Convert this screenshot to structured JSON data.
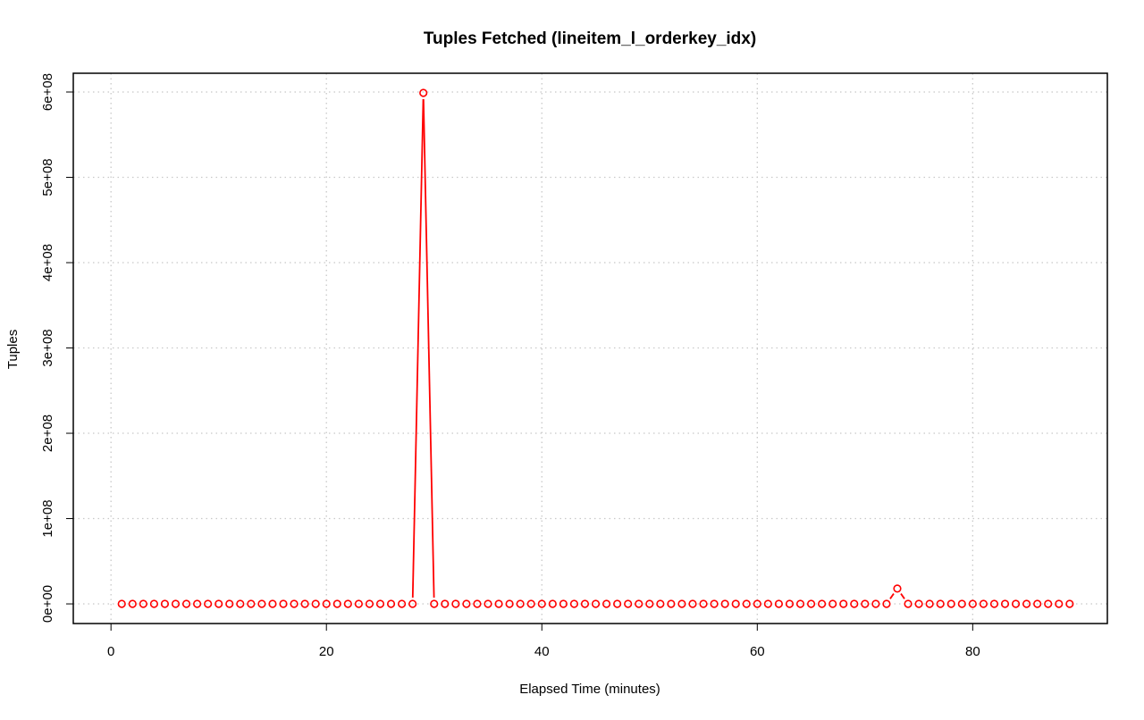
{
  "chart_data": {
    "type": "line",
    "title": "Tuples Fetched (lineitem_l_orderkey_idx)",
    "xlabel": "Elapsed Time (minutes)",
    "ylabel": "Tuples",
    "xlim": [
      -3.5,
      92.5
    ],
    "ylim": [
      -23000000,
      622000000
    ],
    "x_ticks": [
      0,
      20,
      40,
      60,
      80
    ],
    "x_tick_labels": [
      "0",
      "20",
      "40",
      "60",
      "80"
    ],
    "y_ticks": [
      0,
      100000000,
      200000000,
      300000000,
      400000000,
      500000000,
      600000000
    ],
    "y_tick_labels": [
      "0e+00",
      "1e+08",
      "2e+08",
      "3e+08",
      "4e+08",
      "5e+08",
      "6e+08"
    ],
    "grid": true,
    "colors": {
      "series": "#ff0000",
      "grid": "#c8c8c8",
      "axis": "#000000"
    },
    "series": [
      {
        "x": [
          1,
          2,
          3,
          4,
          5,
          6,
          7,
          8,
          9,
          10,
          11,
          12,
          13,
          14,
          15,
          16,
          17,
          18,
          19,
          20,
          21,
          22,
          23,
          24,
          25,
          26,
          27,
          28,
          29,
          30,
          31,
          32,
          33,
          34,
          35,
          36,
          37,
          38,
          39,
          40,
          41,
          42,
          43,
          44,
          45,
          46,
          47,
          48,
          49,
          50,
          51,
          52,
          53,
          54,
          55,
          56,
          57,
          58,
          59,
          60,
          61,
          62,
          63,
          64,
          65,
          66,
          67,
          68,
          69,
          70,
          71,
          72,
          73,
          74,
          75,
          76,
          77,
          78,
          79,
          80,
          81,
          82,
          83,
          84,
          85,
          86,
          87,
          88,
          89
        ],
        "values": [
          0,
          0,
          0,
          0,
          0,
          0,
          0,
          0,
          0,
          0,
          0,
          0,
          0,
          0,
          0,
          0,
          0,
          0,
          0,
          0,
          0,
          0,
          0,
          0,
          0,
          0,
          0,
          0,
          599000000,
          0,
          0,
          0,
          0,
          0,
          0,
          0,
          0,
          0,
          0,
          0,
          0,
          0,
          0,
          0,
          0,
          0,
          0,
          0,
          0,
          0,
          0,
          0,
          0,
          0,
          0,
          0,
          0,
          0,
          0,
          0,
          0,
          0,
          0,
          0,
          0,
          0,
          0,
          0,
          0,
          0,
          0,
          0,
          18000000,
          0,
          0,
          0,
          0,
          0,
          0,
          0,
          0,
          0,
          0,
          0,
          0,
          0,
          0,
          0,
          0
        ]
      }
    ]
  }
}
